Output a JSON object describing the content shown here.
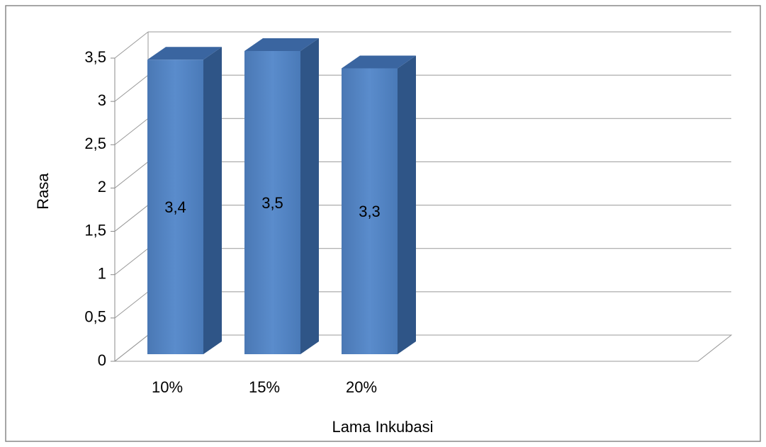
{
  "chart_data": {
    "type": "bar3d",
    "x_label": "Lama Inkubasi",
    "y_label": "Rasa",
    "categories": [
      "10%",
      "15%",
      "20%"
    ],
    "values": [
      3.4,
      3.5,
      3.3
    ],
    "value_labels": [
      "3,4",
      "3,5",
      "3,3"
    ],
    "color": "#4f81bd",
    "ylim": [
      0,
      3.5
    ],
    "yticks": [
      0,
      {
        "value": 0.5,
        "label": "0,5"
      },
      1,
      {
        "value": 1.5,
        "label": "1,5"
      },
      2,
      {
        "value": 2.5,
        "label": "2,5"
      },
      3,
      {
        "value": 3.5,
        "label": "3,5"
      }
    ],
    "grid": true
  }
}
